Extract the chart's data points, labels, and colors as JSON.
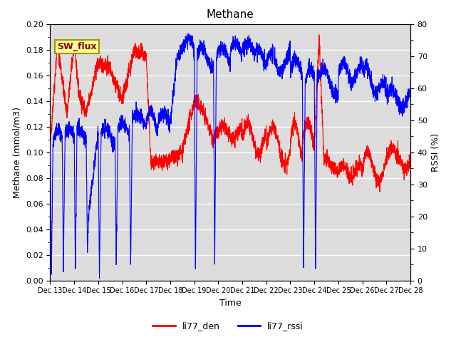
{
  "title": "Methane",
  "ylabel_left": "Methane (mmol/m3)",
  "ylabel_right": "RSSI (%)",
  "xlabel": "Time",
  "ylim_left": [
    0.0,
    0.2
  ],
  "ylim_right": [
    0,
    80
  ],
  "yticks_left": [
    0.0,
    0.02,
    0.04,
    0.06,
    0.08,
    0.1,
    0.12,
    0.14,
    0.16,
    0.18,
    0.2
  ],
  "ytick_labels_left": [
    "0.00",
    "0.02",
    "0.04",
    "0.06",
    "0.08",
    "0.10",
    "0.12",
    "0.14",
    "0.16",
    "0.18",
    "0.20"
  ],
  "yticks_right_major": [
    0,
    10,
    20,
    30,
    40,
    50,
    60,
    70,
    80
  ],
  "yticks_right_minor": [
    5,
    15,
    25,
    35,
    45,
    55,
    65,
    75
  ],
  "xtick_labels": [
    "Dec 13",
    "Dec 14",
    "Dec 15",
    "Dec 16",
    "Dec 17",
    "Dec 18",
    "Dec 19",
    "Dec 20",
    "Dec 21",
    "Dec 22",
    "Dec 23",
    "Dec 24",
    "Dec 25",
    "Dec 26",
    "Dec 27",
    "Dec 28"
  ],
  "color_red": "#FF0000",
  "color_blue": "#0000FF",
  "legend_labels": [
    "li77_den",
    "li77_rssi"
  ],
  "annotation_text": "SW_flux",
  "annotation_bg": "#FFFF99",
  "annotation_border": "#999900",
  "bg_color": "#DCDCDC",
  "linewidth": 0.8,
  "seed": 42
}
